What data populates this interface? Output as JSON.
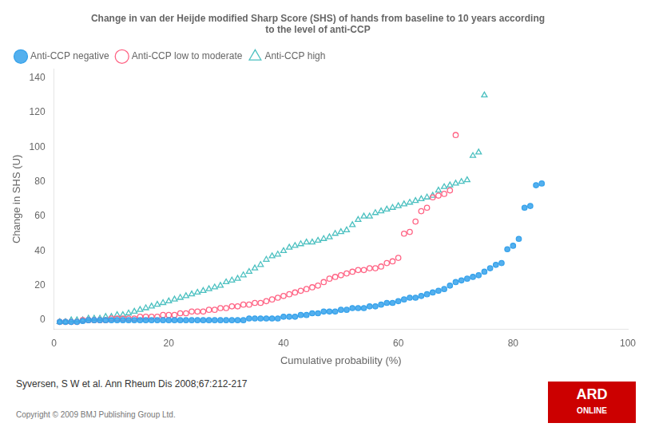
{
  "chart_data": {
    "type": "scatter",
    "title": [
      "Change in van der Heijde modified Sharp Score (SHS) of hands from baseline to 10 years according",
      "to the level of anti-CCP"
    ],
    "xlabel": "Cumulative probability (%)",
    "ylabel": "Change in SHS (U)",
    "xlim": [
      0,
      100
    ],
    "ylim": [
      -5,
      145
    ],
    "xticks": [
      0,
      20,
      40,
      60,
      80,
      100
    ],
    "yticks": [
      0,
      20,
      40,
      60,
      80,
      100,
      120,
      140
    ],
    "grid": false,
    "legend": "top",
    "annotations": [
      "Syversen, S W et al.  Ann Rheum Dis 2008;67:212-217",
      "Copyright © 2009 BMJ Publishing Group Ltd.",
      "ARD",
      "ONLINE"
    ],
    "series": [
      {
        "name": "Anti-CCP negative",
        "marker": "circle",
        "x": [
          1,
          2,
          3,
          4,
          5,
          6,
          7,
          8,
          9,
          10,
          11,
          12,
          13,
          14,
          15,
          16,
          17,
          18,
          19,
          20,
          21,
          22,
          23,
          24,
          25,
          26,
          27,
          28,
          29,
          30,
          31,
          32,
          33,
          34,
          35,
          36,
          37,
          38,
          39,
          40,
          41,
          42,
          43,
          44,
          45,
          46,
          47,
          48,
          49,
          50,
          51,
          52,
          53,
          54,
          55,
          56,
          57,
          58,
          59,
          60,
          61,
          62,
          63,
          64,
          65,
          66,
          67,
          68,
          69,
          70,
          71,
          72,
          73,
          74,
          75,
          76,
          77,
          78,
          79,
          80,
          81,
          82,
          83,
          84,
          85
        ],
        "values": [
          -1,
          -1,
          -1,
          -1,
          -0.5,
          0,
          0,
          0,
          0,
          0,
          0,
          0,
          0,
          0,
          0,
          0,
          0,
          0,
          0,
          0,
          0,
          0,
          0,
          0,
          0,
          0,
          0,
          0,
          0,
          0,
          0,
          0,
          0,
          1,
          1,
          1,
          1,
          1,
          1,
          2,
          2,
          2,
          3,
          3,
          4,
          4,
          5,
          5,
          5,
          6,
          6,
          7,
          7,
          7,
          8,
          8,
          9,
          10,
          10,
          11,
          12,
          13,
          13,
          14,
          15,
          16,
          17,
          18,
          20,
          22,
          23,
          24,
          25,
          26,
          28,
          30,
          32,
          33,
          41,
          43,
          47,
          65,
          66,
          78,
          79
        ]
      },
      {
        "name": "Anti-CCP low to moderate",
        "marker": "open_circle",
        "x": [
          1,
          2,
          3,
          4,
          5,
          6,
          7,
          8,
          9,
          10,
          11,
          12,
          13,
          14,
          15,
          16,
          17,
          18,
          19,
          20,
          21,
          22,
          23,
          24,
          25,
          26,
          27,
          28,
          29,
          30,
          31,
          32,
          33,
          34,
          35,
          36,
          37,
          38,
          39,
          40,
          41,
          42,
          43,
          44,
          45,
          46,
          47,
          48,
          49,
          50,
          51,
          52,
          53,
          54,
          55,
          56,
          57,
          58,
          59,
          60,
          61,
          62,
          63,
          64,
          65,
          66,
          67,
          68,
          69,
          70
        ],
        "values": [
          -1,
          -1,
          -1,
          -1,
          0,
          0,
          0,
          0,
          0,
          1,
          1,
          1,
          1,
          1,
          2,
          2,
          2,
          2,
          3,
          3,
          3,
          4,
          4,
          5,
          5,
          5,
          6,
          6,
          7,
          7,
          8,
          8,
          9,
          9,
          10,
          10,
          11,
          12,
          13,
          14,
          15,
          16,
          17,
          18,
          19,
          20,
          22,
          24,
          25,
          26,
          27,
          28,
          29,
          29,
          30,
          30,
          31,
          33,
          34,
          36,
          50,
          51,
          57,
          63,
          65,
          71,
          72,
          73,
          75,
          107
        ]
      },
      {
        "name": "Anti-CCP high",
        "marker": "open_triangle",
        "x": [
          1,
          2,
          3,
          4,
          5,
          6,
          7,
          8,
          9,
          10,
          11,
          12,
          13,
          14,
          15,
          16,
          17,
          18,
          19,
          20,
          21,
          22,
          23,
          24,
          25,
          26,
          27,
          28,
          29,
          30,
          31,
          32,
          33,
          34,
          35,
          36,
          37,
          38,
          39,
          40,
          41,
          42,
          43,
          44,
          45,
          46,
          47,
          48,
          49,
          50,
          51,
          52,
          53,
          54,
          55,
          56,
          57,
          58,
          59,
          60,
          61,
          62,
          63,
          64,
          65,
          66,
          67,
          68,
          69,
          70,
          71,
          72,
          73,
          74,
          75
        ],
        "values": [
          -1,
          -1,
          0,
          0,
          0,
          1,
          1,
          1,
          2,
          2,
          3,
          3,
          4,
          5,
          6,
          7,
          8,
          9,
          10,
          11,
          12,
          13,
          14,
          15,
          16,
          17,
          18,
          19,
          20,
          22,
          23,
          24,
          26,
          28,
          30,
          32,
          35,
          37,
          38,
          40,
          42,
          43,
          44,
          45,
          45,
          46,
          47,
          48,
          50,
          51,
          52,
          55,
          58,
          60,
          60,
          62,
          63,
          64,
          65,
          66,
          67,
          68,
          69,
          70,
          71,
          72,
          75,
          77,
          78,
          79,
          80,
          81,
          95,
          97,
          130
        ]
      }
    ]
  }
}
